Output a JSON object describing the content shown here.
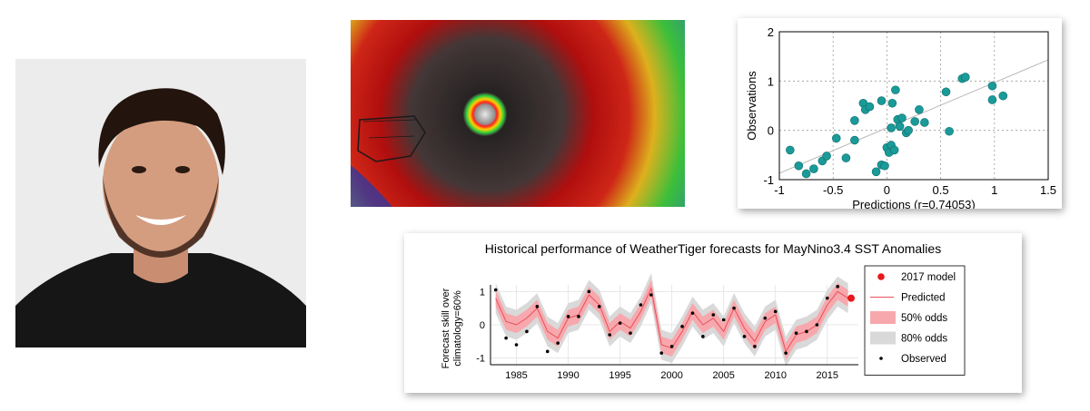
{
  "chart_data": [
    {
      "type": "scatter",
      "xlabel": "Predictions (r=0.74053)",
      "ylabel": "Observations",
      "xlim": [
        -1,
        1.5
      ],
      "ylim": [
        -1,
        2
      ],
      "xticks": [
        "-1",
        "-0.5",
        "0",
        "0.5",
        "1",
        "1.5"
      ],
      "yticks": [
        "-1",
        "0",
        "1",
        "2"
      ],
      "grid": true,
      "trend": {
        "intercept": 0.05,
        "slope": 0.92
      },
      "color": "#1a9a98",
      "points": [
        [
          -0.9,
          -0.4
        ],
        [
          -0.82,
          -0.72
        ],
        [
          -0.75,
          -0.88
        ],
        [
          -0.68,
          -0.78
        ],
        [
          -0.6,
          -0.62
        ],
        [
          -0.56,
          -0.52
        ],
        [
          -0.47,
          -0.16
        ],
        [
          -0.38,
          -0.56
        ],
        [
          -0.3,
          -0.2
        ],
        [
          -0.3,
          0.2
        ],
        [
          -0.22,
          0.55
        ],
        [
          -0.2,
          0.42
        ],
        [
          -0.16,
          0.48
        ],
        [
          -0.1,
          -0.84
        ],
        [
          -0.05,
          -0.7
        ],
        [
          -0.05,
          0.6
        ],
        [
          -0.02,
          -0.72
        ],
        [
          0.0,
          -0.35
        ],
        [
          0.02,
          -0.45
        ],
        [
          0.04,
          -0.3
        ],
        [
          0.04,
          0.05
        ],
        [
          0.05,
          0.55
        ],
        [
          0.07,
          -0.4
        ],
        [
          0.08,
          0.82
        ],
        [
          0.1,
          0.22
        ],
        [
          0.12,
          0.08
        ],
        [
          0.14,
          0.25
        ],
        [
          0.18,
          -0.05
        ],
        [
          0.2,
          0.0
        ],
        [
          0.26,
          0.18
        ],
        [
          0.3,
          0.42
        ],
        [
          0.35,
          0.16
        ],
        [
          0.55,
          0.78
        ],
        [
          0.58,
          -0.02
        ],
        [
          0.7,
          1.05
        ],
        [
          0.73,
          1.08
        ],
        [
          0.98,
          0.9
        ],
        [
          0.98,
          0.62
        ],
        [
          1.08,
          0.7
        ]
      ]
    },
    {
      "type": "line",
      "title": "Historical performance of WeatherTiger forecasts for MayNino3.4 SST Anomalies",
      "ylabel_line1": "Forecast skill over",
      "ylabel_line2": "climatology=60%",
      "xlim": [
        1982.5,
        2018
      ],
      "ylim": [
        -1.2,
        1.2
      ],
      "xticks": [
        "1985",
        "1990",
        "1995",
        "2000",
        "2005",
        "2010",
        "2015"
      ],
      "yticks": [
        "-1",
        "0",
        "1"
      ],
      "x": [
        1983,
        1984,
        1985,
        1986,
        1987,
        1988,
        1989,
        1990,
        1991,
        1992,
        1993,
        1994,
        1995,
        1996,
        1997,
        1998,
        1999,
        2000,
        2001,
        2002,
        2003,
        2004,
        2005,
        2006,
        2007,
        2008,
        2009,
        2010,
        2011,
        2012,
        2013,
        2014,
        2015,
        2016,
        2017
      ],
      "series": [
        {
          "name": "Predicted",
          "values": [
            0.8,
            0.1,
            0.0,
            0.2,
            0.5,
            -0.2,
            -0.4,
            0.2,
            0.3,
            0.9,
            0.6,
            -0.2,
            0.1,
            -0.1,
            0.4,
            1.1,
            -0.6,
            -0.7,
            -0.2,
            0.4,
            0.0,
            0.2,
            -0.2,
            0.5,
            -0.1,
            -0.5,
            0.1,
            0.3,
            -0.8,
            -0.3,
            -0.2,
            0.0,
            0.6,
            1.0,
            0.8
          ]
        },
        {
          "name": "Observed",
          "values": [
            1.05,
            -0.4,
            -0.6,
            -0.2,
            0.55,
            -0.8,
            -0.55,
            0.25,
            0.25,
            1.0,
            0.55,
            -0.3,
            0.05,
            -0.25,
            0.6,
            0.9,
            -0.85,
            -0.65,
            -0.05,
            0.35,
            -0.35,
            0.3,
            0.15,
            0.5,
            -0.35,
            -0.65,
            0.2,
            0.4,
            -0.85,
            -0.25,
            -0.2,
            0.0,
            0.8,
            1.15,
            null
          ]
        }
      ],
      "band50_halfwidth": 0.25,
      "band80_halfwidth": 0.45,
      "model_2017": {
        "x": 2017.3,
        "y": 0.8
      },
      "colors": {
        "line": "#e8505a",
        "band50": "#f7a8ad",
        "band80": "#d9d9d9",
        "model": "#e81818",
        "observed": "#000000"
      },
      "legend": [
        {
          "label": "2017 model",
          "kind": "dot-red"
        },
        {
          "label": "Predicted",
          "kind": "line"
        },
        {
          "label": "50% odds",
          "kind": "band50"
        },
        {
          "label": "80% odds",
          "kind": "band80"
        },
        {
          "label": "Observed",
          "kind": "dot-black"
        }
      ]
    }
  ]
}
